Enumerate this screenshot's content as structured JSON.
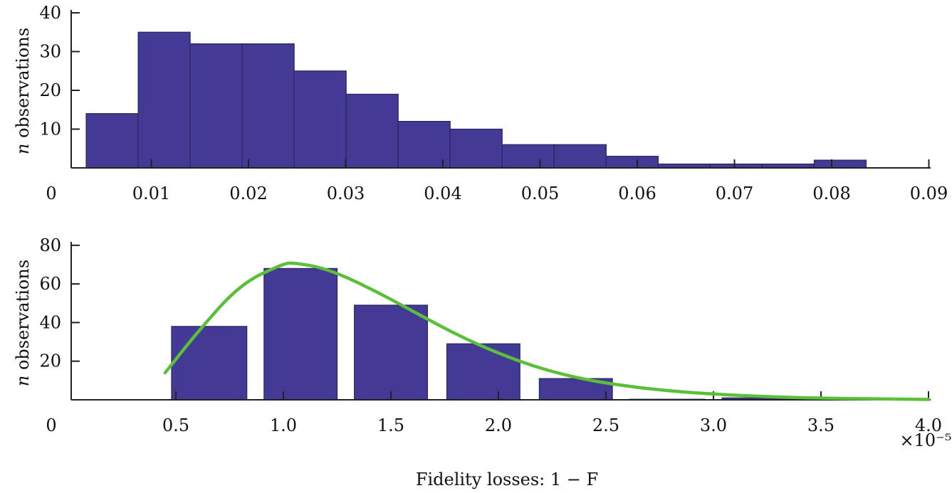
{
  "chart_data": [
    {
      "type": "bar",
      "title": "",
      "xlabel": "",
      "ylabel_italic": "n",
      "ylabel": "observations",
      "xlim": [
        0,
        0.09
      ],
      "ylim": [
        0,
        40
      ],
      "bin_edges": [
        0.0033,
        0.00865,
        0.014,
        0.01935,
        0.0247,
        0.03005,
        0.0354,
        0.04075,
        0.0461,
        0.05145,
        0.0568,
        0.06215,
        0.0675,
        0.07285,
        0.0782,
        0.08355
      ],
      "values": [
        14,
        35,
        32,
        32,
        25,
        19,
        12,
        10,
        6,
        6,
        3,
        1,
        1,
        1,
        2
      ],
      "x_ticks": [
        0.01,
        0.02,
        0.03,
        0.04,
        0.05,
        0.06,
        0.07,
        0.08,
        0.09
      ],
      "x_tick_labels": [
        "0.01",
        "0.02",
        "0.03",
        "0.04",
        "0.05",
        "0.06",
        "0.07",
        "0.08",
        "0.09"
      ],
      "y_ticks": [
        10,
        20,
        30,
        40
      ],
      "y_tick_labels": [
        "10",
        "20",
        "30",
        "40"
      ],
      "origin_label": "0",
      "bar_color": "#433a96"
    },
    {
      "type": "bar",
      "title": "",
      "xlabel": "Fidelity losses: 1 − F",
      "x_multiplier": "×10⁻⁵",
      "ylabel_italic": "n",
      "ylabel": "observations",
      "xlim": [
        0,
        4.0
      ],
      "ylim": [
        0,
        80
      ],
      "bins": [
        [
          0.48,
          0.83
        ],
        [
          0.91,
          1.25
        ],
        [
          1.33,
          1.67
        ],
        [
          1.76,
          2.1
        ],
        [
          2.19,
          2.53
        ],
        [
          2.61,
          2.96
        ],
        [
          3.04,
          3.38
        ]
      ],
      "values": [
        38,
        68,
        49,
        29,
        11,
        0.3,
        1
      ],
      "fit_curve": {
        "x": [
          0.45,
          0.6,
          0.8,
          1.0,
          1.05,
          1.2,
          1.4,
          1.6,
          1.8,
          2.0,
          2.2,
          2.4,
          2.6,
          2.8,
          3.0,
          3.2,
          3.5,
          4.0
        ],
        "y": [
          14,
          35,
          60,
          70.5,
          71,
          68,
          58,
          46,
          34,
          24,
          16,
          10.5,
          7,
          4.5,
          3,
          1.8,
          0.8,
          0.2
        ]
      },
      "x_ticks": [
        0.5,
        1.0,
        1.5,
        2.0,
        2.5,
        3.0,
        3.5,
        4.0
      ],
      "x_tick_labels": [
        "0.5",
        "1.0",
        "1.5",
        "2.0",
        "2.5",
        "3.0",
        "3.5",
        "4.0"
      ],
      "y_ticks": [
        20,
        40,
        60,
        80
      ],
      "y_tick_labels": [
        "20",
        "40",
        "60",
        "80"
      ],
      "origin_label": "0",
      "bar_color": "#433a96",
      "curve_color": "#5cbf3a"
    }
  ]
}
